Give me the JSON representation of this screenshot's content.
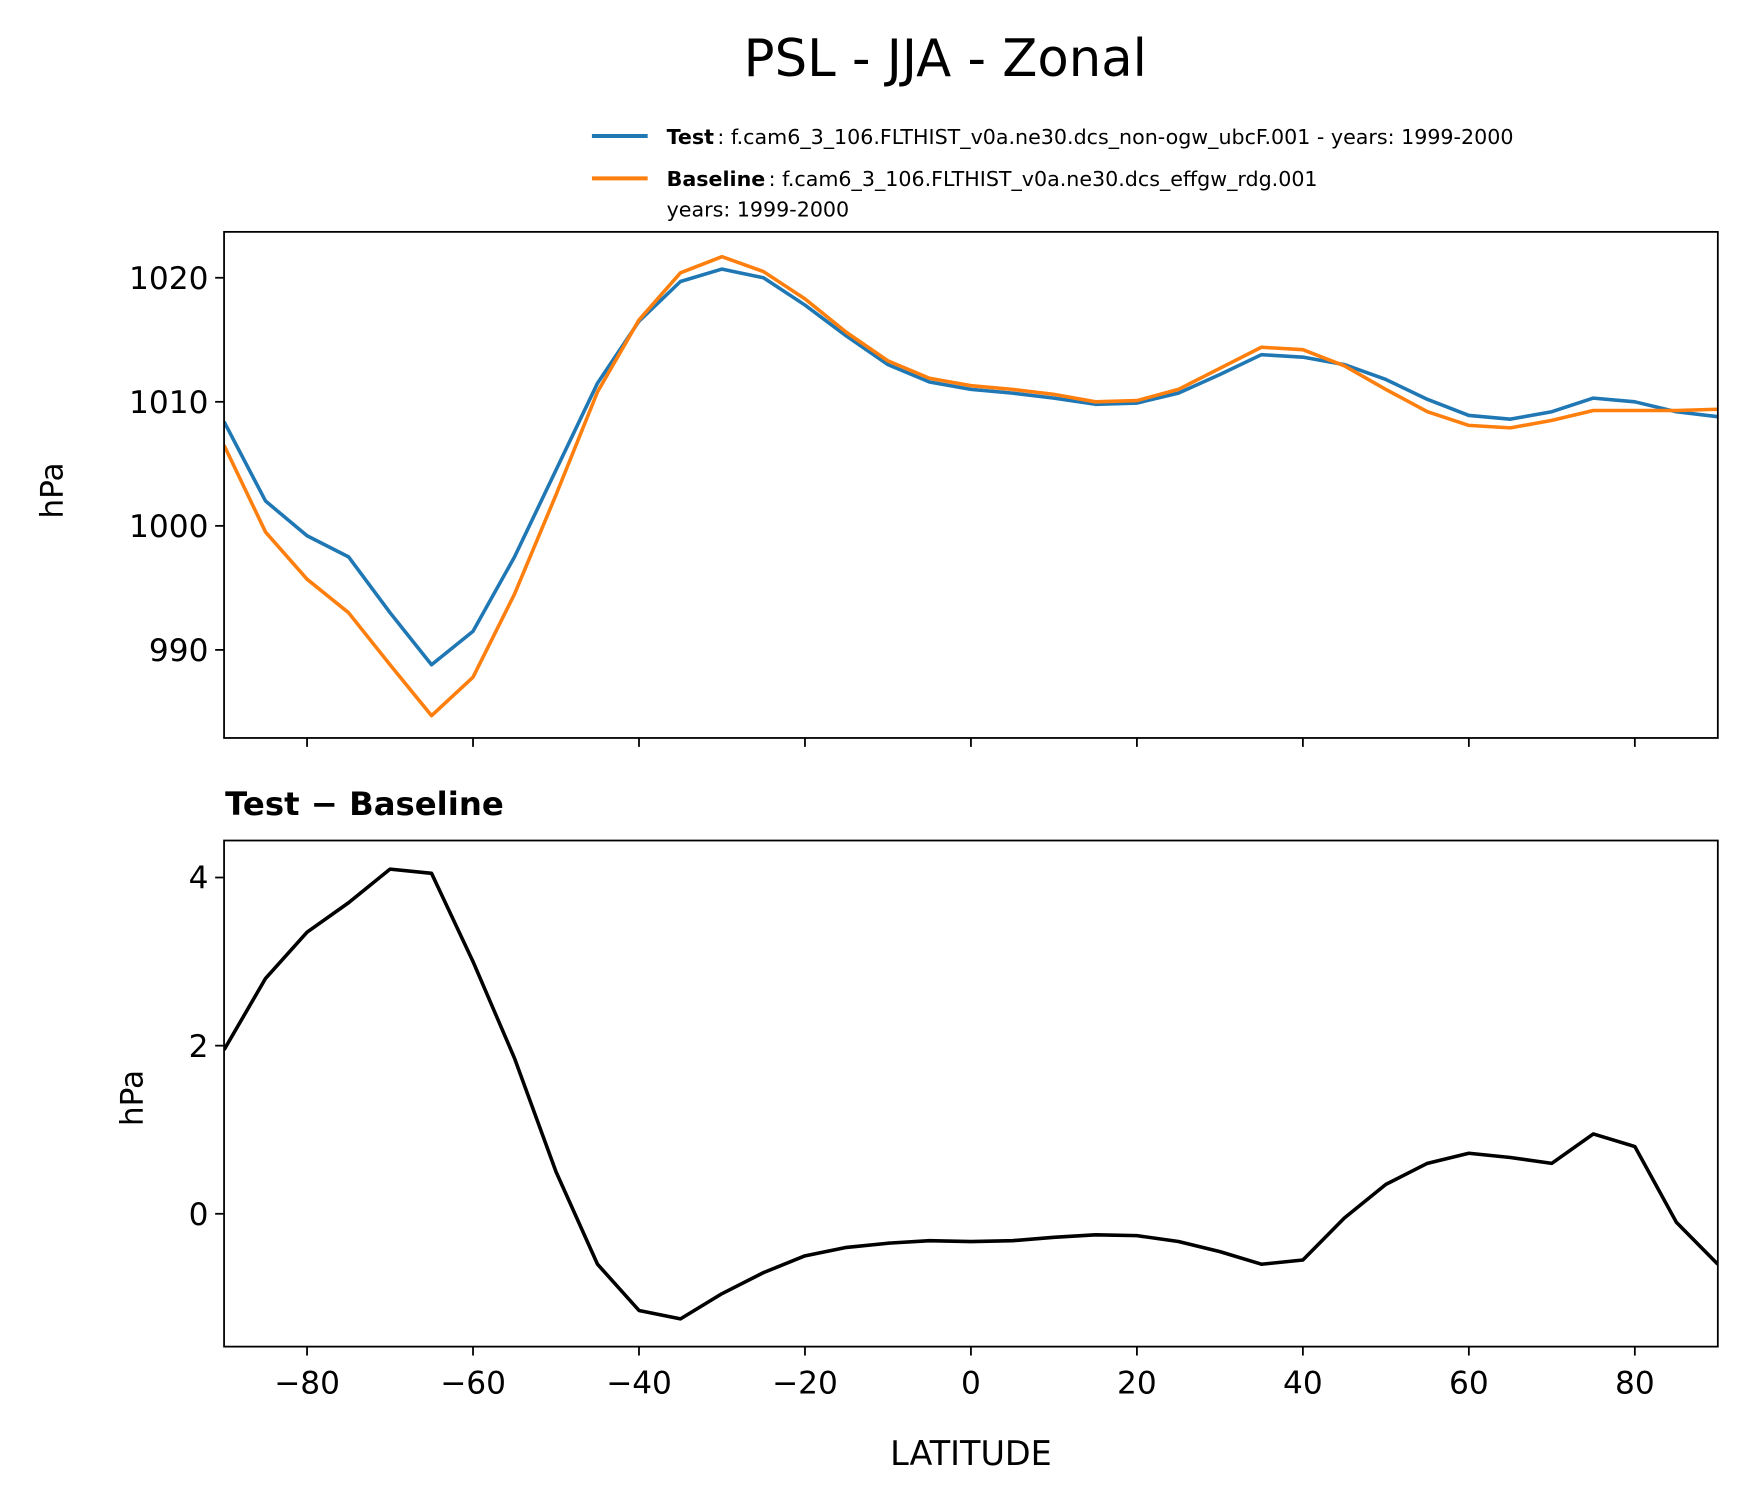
{
  "chart_data": [
    {
      "type": "line",
      "title": "PSL - JJA - Zonal",
      "ylabel": "hPa",
      "x": [
        -90,
        -85,
        -80,
        -75,
        -70,
        -65,
        -60,
        -55,
        -50,
        -45,
        -40,
        -35,
        -30,
        -25,
        -20,
        -15,
        -10,
        -5,
        0,
        5,
        10,
        15,
        20,
        25,
        30,
        35,
        40,
        45,
        50,
        55,
        60,
        65,
        70,
        75,
        80,
        85,
        90
      ],
      "series": [
        {
          "name": "Test",
          "label": ": f.cam6_3_106.FLTHIST_v0a.ne30.dcs_non-ogw_ubcF.001 - years: 1999-2000",
          "color": "#1f77b4",
          "values": [
            1008.4,
            1002.0,
            999.2,
            997.5,
            993.0,
            988.8,
            991.5,
            997.5,
            1004.5,
            1011.5,
            1016.5,
            1019.7,
            1020.7,
            1020.0,
            1017.8,
            1015.3,
            1013.0,
            1011.6,
            1011.0,
            1010.7,
            1010.3,
            1009.8,
            1009.9,
            1010.7,
            1012.2,
            1013.8,
            1013.6,
            1013.0,
            1011.8,
            1010.2,
            1008.9,
            1008.6,
            1009.2,
            1010.3,
            1010.0,
            1009.2,
            1008.8
          ]
        },
        {
          "name": "Baseline",
          "label": [
            ": f.cam6_3_106.FLTHIST_v0a.ne30.dcs_effgw_rdg.001",
            "years: 1999-2000"
          ],
          "color": "#ff7f0e",
          "values": [
            1006.5,
            999.5,
            995.7,
            993.0,
            988.8,
            984.7,
            987.8,
            994.5,
            1002.5,
            1010.8,
            1016.6,
            1020.4,
            1021.7,
            1020.5,
            1018.3,
            1015.6,
            1013.3,
            1011.9,
            1011.3,
            1011.0,
            1010.6,
            1010.0,
            1010.1,
            1011.0,
            1012.7,
            1014.4,
            1014.2,
            1012.9,
            1011.0,
            1009.2,
            1008.1,
            1007.9,
            1008.5,
            1009.3,
            1009.3,
            1009.3,
            1009.4
          ]
        }
      ],
      "xlim": [
        -90,
        90
      ],
      "ylim": [
        982.9,
        1023.7
      ],
      "yticks": [
        990,
        1000,
        1010,
        1020
      ],
      "legend": "upper right"
    },
    {
      "type": "line",
      "title": "Test − Baseline",
      "xlabel": "LATITUDE",
      "ylabel": "hPa",
      "x": [
        -90,
        -85,
        -80,
        -75,
        -70,
        -65,
        -60,
        -55,
        -50,
        -45,
        -40,
        -35,
        -30,
        -25,
        -20,
        -15,
        -10,
        -5,
        0,
        5,
        10,
        15,
        20,
        25,
        30,
        35,
        40,
        45,
        50,
        55,
        60,
        65,
        70,
        75,
        80,
        85,
        90
      ],
      "series": [
        {
          "color": "#000000",
          "values": [
            1.95,
            2.8,
            3.35,
            3.7,
            4.1,
            4.05,
            3.0,
            1.85,
            0.5,
            -0.6,
            -1.15,
            -1.25,
            -0.95,
            -0.7,
            -0.5,
            -0.4,
            -0.35,
            -0.32,
            -0.33,
            -0.32,
            -0.28,
            -0.25,
            -0.26,
            -0.33,
            -0.45,
            -0.6,
            -0.55,
            -0.05,
            0.35,
            0.6,
            0.72,
            0.67,
            0.6,
            0.95,
            0.8,
            -0.1,
            -0.6
          ]
        }
      ],
      "xlim": [
        -90,
        90
      ],
      "xticks": [
        {
          "value": -80,
          "label": "−80"
        },
        {
          "value": -60,
          "label": "−60"
        },
        {
          "value": -40,
          "label": "−40"
        },
        {
          "value": -20,
          "label": "−20"
        },
        0,
        20,
        40,
        60,
        80
      ],
      "ylim": [
        -1.58,
        4.44
      ],
      "yticks": [
        0,
        2,
        4
      ]
    }
  ]
}
